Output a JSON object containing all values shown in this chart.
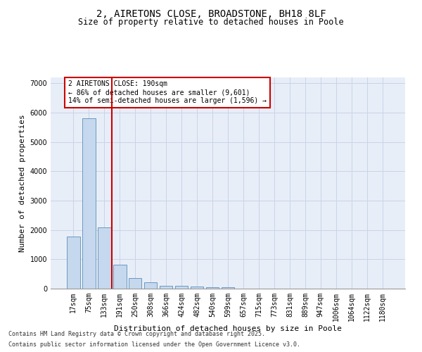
{
  "title_line1": "2, AIRETONS CLOSE, BROADSTONE, BH18 8LF",
  "title_line2": "Size of property relative to detached houses in Poole",
  "xlabel": "Distribution of detached houses by size in Poole",
  "ylabel": "Number of detached properties",
  "categories": [
    "17sqm",
    "75sqm",
    "133sqm",
    "191sqm",
    "250sqm",
    "308sqm",
    "366sqm",
    "424sqm",
    "482sqm",
    "540sqm",
    "599sqm",
    "657sqm",
    "715sqm",
    "773sqm",
    "831sqm",
    "889sqm",
    "947sqm",
    "1006sqm",
    "1064sqm",
    "1122sqm",
    "1180sqm"
  ],
  "values": [
    1780,
    5820,
    2090,
    820,
    370,
    210,
    100,
    85,
    70,
    55,
    50,
    0,
    0,
    0,
    0,
    0,
    0,
    0,
    0,
    0,
    0
  ],
  "bar_color": "#c5d8ed",
  "bar_edge_color": "#5b8db8",
  "vline_x_index": 3,
  "vline_color": "#cc0000",
  "annotation_text": "2 AIRETONS CLOSE: 190sqm\n← 86% of detached houses are smaller (9,601)\n14% of semi-detached houses are larger (1,596) →",
  "annotation_box_color": "#cc0000",
  "ylim": [
    0,
    7200
  ],
  "yticks": [
    0,
    1000,
    2000,
    3000,
    4000,
    5000,
    6000,
    7000
  ],
  "grid_color": "#c8d4e8",
  "bg_color": "#e8eef8",
  "footer_line1": "Contains HM Land Registry data © Crown copyright and database right 2025.",
  "footer_line2": "Contains public sector information licensed under the Open Government Licence v3.0.",
  "title_fontsize": 10,
  "subtitle_fontsize": 8.5,
  "axis_label_fontsize": 8,
  "tick_fontsize": 7,
  "annotation_fontsize": 7
}
